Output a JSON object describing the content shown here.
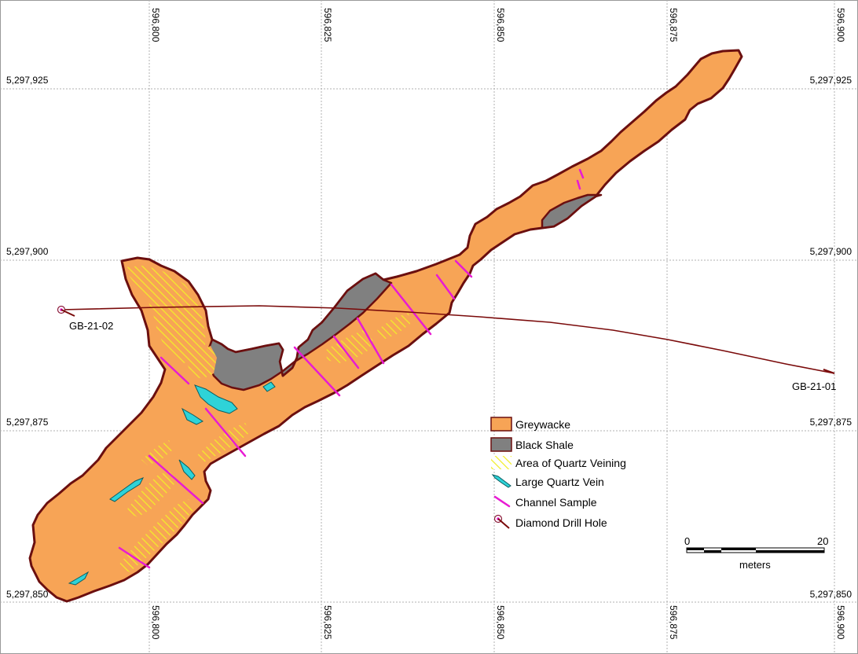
{
  "map": {
    "easting_labels": [
      "596,800",
      "596,825",
      "596,850",
      "596,875",
      "596,900"
    ],
    "northing_labels": [
      "5,297,925",
      "5,297,900",
      "5,297,875",
      "5,297,850"
    ],
    "drill_holes": [
      {
        "name": "GB-21-02"
      },
      {
        "name": "GB-21-01"
      }
    ]
  },
  "legend": {
    "items": [
      {
        "label": "Greywacke",
        "icon": "orange-fill-swatch"
      },
      {
        "label": "Black Shale",
        "icon": "grey-fill-swatch"
      },
      {
        "label": "Area of Quartz Veining",
        "icon": "yellow-hatch-swatch"
      },
      {
        "label": "Large Quartz Vein",
        "icon": "cyan-vein-icon"
      },
      {
        "label": "Channel Sample",
        "icon": "magenta-line-icon"
      },
      {
        "label": "Diamond Drill Hole",
        "icon": "drill-hole-icon"
      }
    ]
  },
  "scale_bar": {
    "start_label": "0",
    "end_label": "20",
    "unit_label": "meters"
  },
  "colors": {
    "greywacke": "#F7A456",
    "black_shale": "#808080",
    "outline": "#6B0F0F",
    "quartz_hatch": "#F2EE2A",
    "quartz_vein": "#2ED3D8",
    "channel_sample": "#E81BD3",
    "drill_trace": "#7A0A0A",
    "grid": "#B0B0B0"
  }
}
